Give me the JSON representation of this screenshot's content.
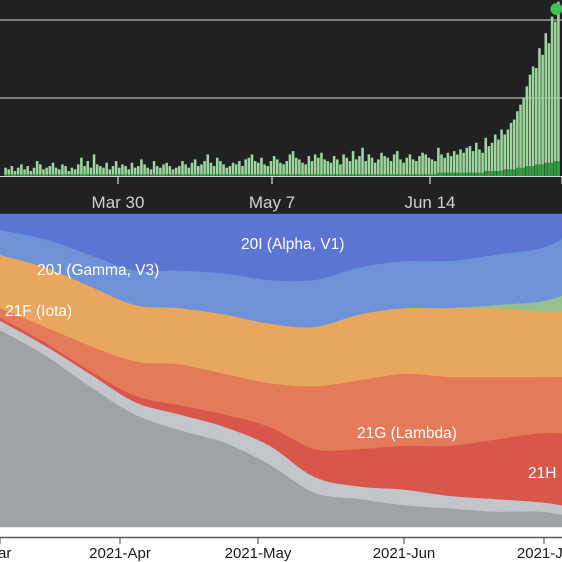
{
  "colors": {
    "top_background": "#202122",
    "gridline": "#9b9c9e",
    "bar_light": "#9ed79e",
    "bar_dark": "#2e9e45",
    "marker": "#3ec24f",
    "tick_text": "#cfd0d2",
    "bottom_axis_text": "#1a1a1a"
  },
  "chart_data": [
    {
      "type": "bar",
      "title": "",
      "xlabel": "",
      "ylabel": "",
      "grid": true,
      "x_tick_labels": [
        "Mar 30",
        "May 7",
        "Jun 14",
        ""
      ],
      "series": [
        {
          "name": "",
          "values": [
            4,
            3,
            5,
            2,
            4,
            6,
            3,
            5,
            2,
            4,
            8,
            6,
            3,
            4,
            5,
            7,
            4,
            3,
            6,
            5,
            2,
            4,
            3,
            6,
            10,
            5,
            8,
            4,
            12,
            6,
            5,
            4,
            7,
            3,
            5,
            8,
            4,
            6,
            5,
            3,
            7,
            4,
            5,
            9,
            6,
            4,
            3,
            8,
            5,
            4,
            6,
            7,
            5,
            3,
            4,
            5,
            8,
            6,
            4,
            7,
            9,
            5,
            6,
            8,
            12,
            7,
            5,
            10,
            8,
            6,
            4,
            5,
            7,
            6,
            8,
            5,
            9,
            10,
            12,
            8,
            7,
            10,
            6,
            5,
            8,
            11,
            9,
            7,
            6,
            8,
            12,
            14,
            10,
            9,
            7,
            6,
            11,
            8,
            12,
            10,
            13,
            9,
            8,
            7,
            11,
            9,
            6,
            12,
            10,
            8,
            14,
            9,
            11,
            16,
            8,
            12,
            10,
            7,
            9,
            13,
            11,
            10,
            8,
            12,
            14,
            9,
            7,
            10,
            12,
            9,
            8,
            11,
            13,
            12,
            10,
            9,
            8,
            15,
            11,
            9,
            12,
            10,
            13,
            11,
            14,
            12,
            15,
            16,
            13,
            18,
            14,
            12,
            20,
            15,
            17,
            22,
            19,
            25,
            21,
            24,
            28,
            30,
            34,
            38,
            42,
            48,
            55,
            60,
            58,
            70,
            66,
            78,
            72,
            88,
            84,
            96
          ]
        },
        {
          "name": "",
          "values": [
            1,
            1,
            1,
            1,
            1,
            1,
            1,
            1,
            1,
            1,
            1,
            1,
            1,
            1,
            1,
            1,
            1,
            1,
            1,
            1,
            1,
            1,
            1,
            1,
            1,
            1,
            1,
            1,
            1,
            1,
            1,
            1,
            1,
            1,
            1,
            1,
            1,
            1,
            1,
            1,
            1,
            1,
            1,
            1,
            1,
            1,
            1,
            1,
            1,
            1,
            1,
            1,
            1,
            1,
            1,
            1,
            1,
            1,
            1,
            1,
            1,
            1,
            1,
            1,
            1,
            1,
            1,
            1,
            1,
            1,
            1,
            1,
            1,
            1,
            1,
            1,
            1,
            1,
            1,
            1,
            1,
            1,
            1,
            1,
            1,
            1,
            1,
            1,
            1,
            1,
            1,
            1,
            1,
            1,
            1,
            1,
            1,
            1,
            1,
            1,
            1,
            1,
            1,
            1,
            1,
            1,
            1,
            1,
            1,
            1,
            1,
            1,
            1,
            1,
            1,
            1,
            1,
            1,
            1,
            1,
            1,
            1,
            1,
            1,
            1,
            1,
            1,
            1,
            1,
            1,
            1,
            1,
            1,
            1,
            1,
            1,
            1,
            2,
            2,
            2,
            2,
            2,
            2,
            2,
            2,
            2,
            2,
            2,
            2,
            2,
            2,
            2,
            3,
            3,
            3,
            3,
            3,
            3,
            4,
            4,
            4,
            4,
            5,
            5,
            5,
            6,
            6,
            6,
            7,
            7,
            7,
            8,
            8,
            8,
            9,
            9
          ]
        }
      ],
      "ylim": [
        0,
        100
      ]
    },
    {
      "type": "area",
      "stacked": true,
      "normalized": true,
      "title": "",
      "xlabel": "",
      "ylabel": "",
      "x": [
        0,
        0.08,
        0.16,
        0.24,
        0.32,
        0.4,
        0.48,
        0.56,
        0.64,
        0.72,
        0.8,
        0.88,
        0.96,
        1.0
      ],
      "x_tick_labels": [
        "ar",
        "2021-Apr",
        "2021-May",
        "2021-Jun",
        "2021-Ju"
      ],
      "series": [
        {
          "name": "",
          "color": "#9fa2a7",
          "values": [
            0.63,
            0.55,
            0.45,
            0.36,
            0.31,
            0.27,
            0.2,
            0.11,
            0.09,
            0.07,
            0.06,
            0.05,
            0.05,
            0.04
          ]
        },
        {
          "name": "",
          "color": "#c2c5ca",
          "values": [
            0.03,
            0.03,
            0.04,
            0.04,
            0.05,
            0.05,
            0.06,
            0.05,
            0.04,
            0.05,
            0.04,
            0.04,
            0.03,
            0.03
          ]
        },
        {
          "name": "21H",
          "color": "#d9564a",
          "values": [
            0.01,
            0.01,
            0.01,
            0.02,
            0.03,
            0.04,
            0.06,
            0.09,
            0.12,
            0.14,
            0.16,
            0.19,
            0.22,
            0.23
          ]
        },
        {
          "name": "21G (Lambda)",
          "color": "#e47a57",
          "values": [
            0.03,
            0.05,
            0.08,
            0.11,
            0.13,
            0.13,
            0.14,
            0.2,
            0.22,
            0.23,
            0.22,
            0.2,
            0.18,
            0.18
          ]
        },
        {
          "name": "21F (Iota)",
          "color": "#e9a65f",
          "values": [
            0.17,
            0.19,
            0.19,
            0.18,
            0.18,
            0.19,
            0.19,
            0.19,
            0.21,
            0.21,
            0.22,
            0.22,
            0.21,
            0.21
          ]
        },
        {
          "name": "",
          "color": "#95c08d",
          "values": [
            0.0,
            0.0,
            0.0,
            0.0,
            0.0,
            0.0,
            0.0,
            0.0,
            0.0,
            0.0,
            0.0,
            0.01,
            0.03,
            0.05
          ]
        },
        {
          "name": "20J (Gamma, V3)",
          "color": "#6d92d8",
          "values": [
            0.08,
            0.09,
            0.1,
            0.11,
            0.12,
            0.13,
            0.14,
            0.15,
            0.15,
            0.15,
            0.15,
            0.16,
            0.17,
            0.18
          ]
        },
        {
          "name": "20I (Alpha, V1)",
          "color": "#5b75d4",
          "values": [
            0.05,
            0.08,
            0.13,
            0.18,
            0.18,
            0.19,
            0.21,
            0.21,
            0.17,
            0.15,
            0.15,
            0.13,
            0.11,
            0.08
          ]
        }
      ],
      "ylim": [
        0,
        1
      ]
    }
  ]
}
